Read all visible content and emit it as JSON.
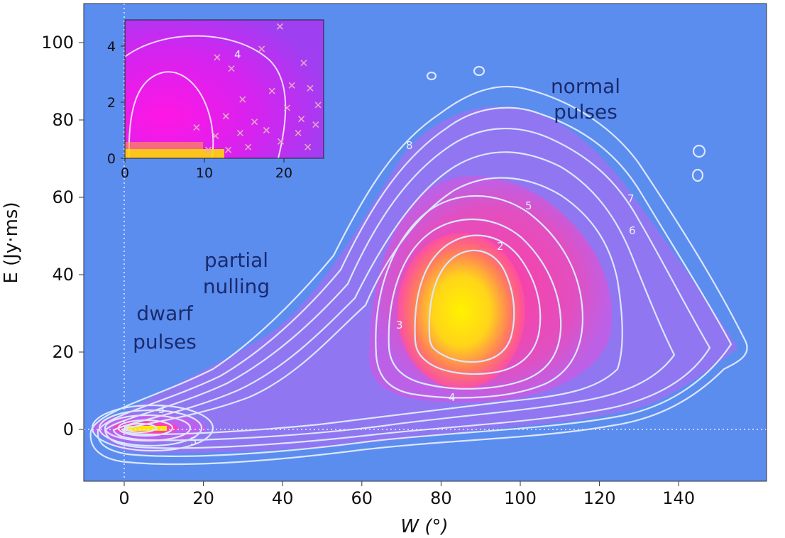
{
  "chart_data": [
    {
      "type": "contour",
      "xlabel": "W (°)",
      "ylabel": "E (Jy·ms)",
      "xlim": [
        -10,
        160
      ],
      "ylim": [
        -13,
        108
      ],
      "x_ticks": [
        0,
        20,
        40,
        60,
        80,
        100,
        120,
        140
      ],
      "y_ticks": [
        0,
        20,
        40,
        60,
        80,
        100
      ],
      "background": "#5b8def",
      "reference_lines": [
        {
          "axis": "x",
          "value": 0
        },
        {
          "axis": "y",
          "value": 0
        }
      ],
      "contour_levels_labeled": [
        "2",
        "3",
        "4",
        "5",
        "6",
        "7",
        "8"
      ],
      "clusters": [
        {
          "label": "normal pulses",
          "center_W": 84,
          "center_E": 30
        },
        {
          "label": "dwarf pulses",
          "center_W": 5,
          "center_E": 0
        }
      ],
      "annotations": [
        {
          "lines": [
            "normal",
            "pulses"
          ],
          "x": 104,
          "y": 80
        },
        {
          "lines": [
            "partial",
            "nulling"
          ],
          "x": 40,
          "y": 41
        },
        {
          "lines": [
            "dwarf",
            "pulses"
          ],
          "x": 10,
          "y": 26
        }
      ]
    },
    {
      "type": "scatter",
      "name": "inset",
      "xlim": [
        0,
        25
      ],
      "ylim": [
        0,
        5
      ],
      "x_ticks": [
        0,
        10,
        20
      ],
      "y_ticks": [
        0,
        2,
        4
      ],
      "contour_labels": [
        "4"
      ],
      "points": [
        [
          19.5,
          4.7
        ],
        [
          11.6,
          3.6
        ],
        [
          17.2,
          3.9
        ],
        [
          22.5,
          3.4
        ],
        [
          13.4,
          3.2
        ],
        [
          21.0,
          2.6
        ],
        [
          23.3,
          2.5
        ],
        [
          18.5,
          2.4
        ],
        [
          14.8,
          2.1
        ],
        [
          24.3,
          1.9
        ],
        [
          20.4,
          1.8
        ],
        [
          12.7,
          1.5
        ],
        [
          16.3,
          1.3
        ],
        [
          22.2,
          1.4
        ],
        [
          9.0,
          1.1
        ],
        [
          11.4,
          0.8
        ],
        [
          14.5,
          0.9
        ],
        [
          17.8,
          1.0
        ],
        [
          19.6,
          0.6
        ],
        [
          21.8,
          0.9
        ],
        [
          24.0,
          1.2
        ],
        [
          15.5,
          0.4
        ],
        [
          13.0,
          0.3
        ],
        [
          23.0,
          0.4
        ],
        [
          10.5,
          0.3
        ]
      ]
    }
  ],
  "colors": {
    "background": "#5b8def",
    "contour_line": "#dbe6ff",
    "density_low": "#b06bff",
    "density_mid": "#ff3fae",
    "density_high": "#ffe600",
    "inset_marker": "#e5a8c8"
  }
}
